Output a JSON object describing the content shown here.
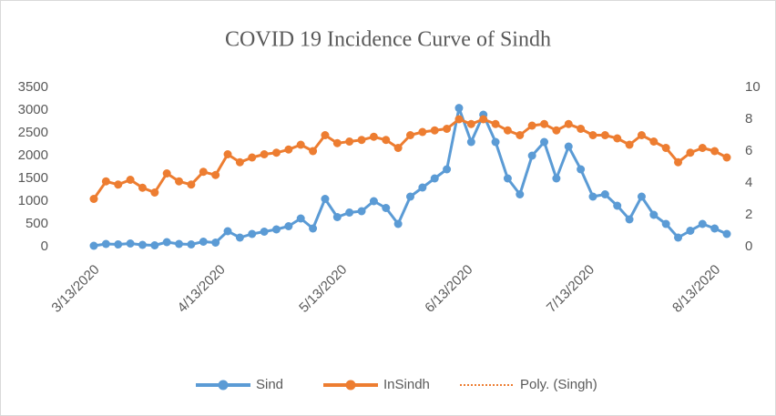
{
  "chart_data": {
    "type": "line",
    "title": "COVID 19 Incidence Curve of Sindh",
    "x": [
      "3/13/2020",
      "3/16/2020",
      "3/19/2020",
      "3/22/2020",
      "3/25/2020",
      "3/28/2020",
      "3/31/2020",
      "4/3/2020",
      "4/6/2020",
      "4/9/2020",
      "4/12/2020",
      "4/15/2020",
      "4/18/2020",
      "4/21/2020",
      "4/24/2020",
      "4/27/2020",
      "4/30/2020",
      "5/3/2020",
      "5/6/2020",
      "5/9/2020",
      "5/12/2020",
      "5/15/2020",
      "5/18/2020",
      "5/21/2020",
      "5/24/2020",
      "5/27/2020",
      "5/30/2020",
      "6/2/2020",
      "6/5/2020",
      "6/8/2020",
      "6/11/2020",
      "6/14/2020",
      "6/17/2020",
      "6/20/2020",
      "6/23/2020",
      "6/26/2020",
      "6/29/2020",
      "7/2/2020",
      "7/5/2020",
      "7/8/2020",
      "7/11/2020",
      "7/14/2020",
      "7/17/2020",
      "7/20/2020",
      "7/23/2020",
      "7/26/2020",
      "7/29/2020",
      "8/1/2020",
      "8/4/2020",
      "8/7/2020",
      "8/10/2020",
      "8/13/2020",
      "8/16/2020"
    ],
    "series": [
      {
        "name": "Sind",
        "color": "#5b9bd5",
        "axis": "y",
        "values": [
          20,
          60,
          50,
          70,
          40,
          30,
          100,
          60,
          50,
          110,
          90,
          340,
          200,
          280,
          330,
          380,
          450,
          620,
          400,
          1050,
          650,
          750,
          780,
          1000,
          850,
          500,
          1100,
          1300,
          1500,
          1700,
          3047,
          2300,
          2900,
          2300,
          1500,
          1150,
          2000,
          2300,
          1500,
          2200,
          1700,
          1100,
          1150,
          900,
          600,
          1100,
          700,
          500,
          200,
          350,
          500,
          400,
          280
        ]
      },
      {
        "name": "InSindh",
        "color": "#ed7d31",
        "axis": "y2",
        "values": [
          3.0,
          4.1,
          3.9,
          4.2,
          3.7,
          3.4,
          4.6,
          4.1,
          3.9,
          4.7,
          4.5,
          5.8,
          5.3,
          5.6,
          5.8,
          5.9,
          6.1,
          6.4,
          6.0,
          7.0,
          6.5,
          6.6,
          6.7,
          6.9,
          6.7,
          6.2,
          7.0,
          7.2,
          7.3,
          7.4,
          8.0,
          7.7,
          8.0,
          7.7,
          7.3,
          7.0,
          7.6,
          7.7,
          7.3,
          7.7,
          7.4,
          7.0,
          7.0,
          6.8,
          6.4,
          7.0,
          6.6,
          6.2,
          5.3,
          5.9,
          6.2,
          6.0,
          5.6
        ]
      }
    ],
    "trendline": {
      "name": "Poly. (Singh)",
      "color": "#ed7d31",
      "style": "dotted"
    },
    "xlim": [
      "3/13/2020",
      "8/16/2020"
    ],
    "xticks": [
      "3/13/2020",
      "4/13/2020",
      "5/13/2020",
      "6/13/2020",
      "7/13/2020",
      "8/13/2020"
    ],
    "ylim": [
      0,
      3500
    ],
    "yticks": [
      0,
      500,
      1000,
      1500,
      2000,
      2500,
      3000,
      3500
    ],
    "y2lim": [
      0,
      10
    ],
    "y2ticks": [
      0,
      2,
      4,
      6,
      8,
      10
    ],
    "grid": false,
    "legend": "bottom"
  }
}
